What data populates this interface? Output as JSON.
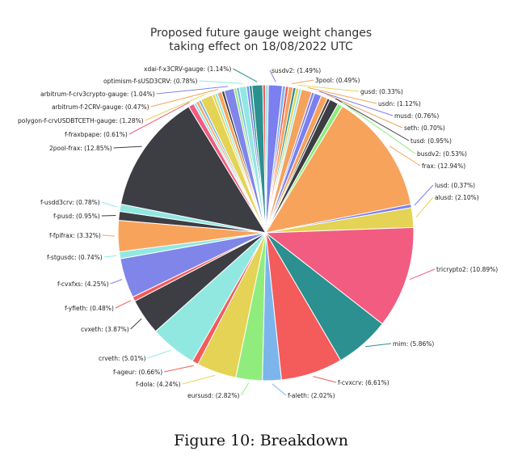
{
  "chart_data": {
    "type": "pie",
    "title": [
      "Proposed future gauge weight changes",
      "taking effect on 18/08/2022 UTC"
    ],
    "slices": [
      {
        "label": "susdv2",
        "value": 1.49,
        "color": "#7b7ff0"
      },
      {
        "label": "3pool",
        "value": 0.49,
        "color": "#f5a25d"
      },
      {
        "label": "gusd",
        "value": 0.33,
        "color": "#e6d45c"
      },
      {
        "label": "usdn",
        "value": 1.12,
        "color": "#f5a25d"
      },
      {
        "label": "musd",
        "value": 0.76,
        "color": "#7b7ff0"
      },
      {
        "label": "seth",
        "value": 0.7,
        "color": "#f5a25d"
      },
      {
        "label": "tusd",
        "value": 0.95,
        "color": "#3d3d44"
      },
      {
        "label": "busdv2",
        "value": 0.53,
        "color": "#90ed7d"
      },
      {
        "label": "frax",
        "value": 12.94,
        "color": "#f7a35c"
      },
      {
        "label": "lusd",
        "value": 0.37,
        "color": "#7b7ff0"
      },
      {
        "label": "alusd",
        "value": 2.1,
        "color": "#e4d354"
      },
      {
        "label": "tricrypto2",
        "value": 10.89,
        "color": "#f15c80"
      },
      {
        "label": "mim",
        "value": 5.86,
        "color": "#2b908f"
      },
      {
        "label": "f-cvxcrv",
        "value": 6.61,
        "color": "#f45b5b"
      },
      {
        "label": "f-aleth",
        "value": 2.02,
        "color": "#7cb5ec"
      },
      {
        "label": "eursusd",
        "value": 2.82,
        "color": "#90ed7d"
      },
      {
        "label": "f-dola",
        "value": 4.24,
        "color": "#e4d354"
      },
      {
        "label": "f-ageur",
        "value": 0.66,
        "color": "#f45b5b"
      },
      {
        "label": "crveth",
        "value": 5.01,
        "color": "#91e8e1"
      },
      {
        "label": "cvxeth",
        "value": 3.87,
        "color": "#3d3d44"
      },
      {
        "label": "f-yfieth",
        "value": 0.48,
        "color": "#f45b5b"
      },
      {
        "label": "f-cvxfxs",
        "value": 4.25,
        "color": "#8085e9"
      },
      {
        "label": "f-stgusdc",
        "value": 0.74,
        "color": "#91e8e1"
      },
      {
        "label": "f-fpifrax",
        "value": 3.32,
        "color": "#f7a35c"
      },
      {
        "label": "f-pusd",
        "value": 0.95,
        "color": "#3d3d44"
      },
      {
        "label": "f-usdd3crv",
        "value": 0.78,
        "color": "#91e8e1"
      },
      {
        "label": "2pool-frax",
        "value": 12.85,
        "color": "#3d3d44"
      },
      {
        "label": "f-fraxbpape",
        "value": 0.61,
        "color": "#f15c80"
      },
      {
        "label": "polygon-f-crvUSDBTCETH-gauge",
        "value": 1.28,
        "color": "#e4d354"
      },
      {
        "label": "arbitrum-f-2CRV-gauge",
        "value": 0.47,
        "color": "#f7a35c"
      },
      {
        "label": "arbitrum-f-crv3crypto-gauge",
        "value": 1.04,
        "color": "#8085e9"
      },
      {
        "label": "optimism-f-sUSD3CRV",
        "value": 0.78,
        "color": "#91e8e1"
      },
      {
        "label": "xdai-f-x3CRV-gauge",
        "value": 1.14,
        "color": "#2b908f"
      }
    ],
    "unlabeled_slices": [
      {
        "value": 0.35,
        "color": "#7cb5ec"
      },
      {
        "value": 0.3,
        "color": "#f45b5b"
      },
      {
        "value": 0.3,
        "color": "#2b908f"
      },
      {
        "value": 0.28,
        "color": "#91e8e1"
      },
      {
        "value": 0.3,
        "color": "#8085e9"
      },
      {
        "value": 0.3,
        "color": "#434348"
      },
      {
        "value": 0.28,
        "color": "#91e8e1"
      },
      {
        "value": 0.3,
        "color": "#f7a35c"
      },
      {
        "value": 0.28,
        "color": "#7cb5ec"
      },
      {
        "value": 0.3,
        "color": "#e4d354"
      },
      {
        "value": 0.29,
        "color": "#91e8e1"
      },
      {
        "value": 0.29,
        "color": "#434348"
      },
      {
        "value": 0.28,
        "color": "#90ed7d"
      },
      {
        "value": 0.29,
        "color": "#7cb5ec"
      },
      {
        "value": 0.29,
        "color": "#8085e9"
      },
      {
        "value": 0.3,
        "color": "#2b908f"
      },
      {
        "value": 0.3,
        "color": "#f45b5b"
      },
      {
        "value": 0.3,
        "color": "#91e8e1"
      }
    ]
  },
  "caption": "Figure 10: Breakdown"
}
